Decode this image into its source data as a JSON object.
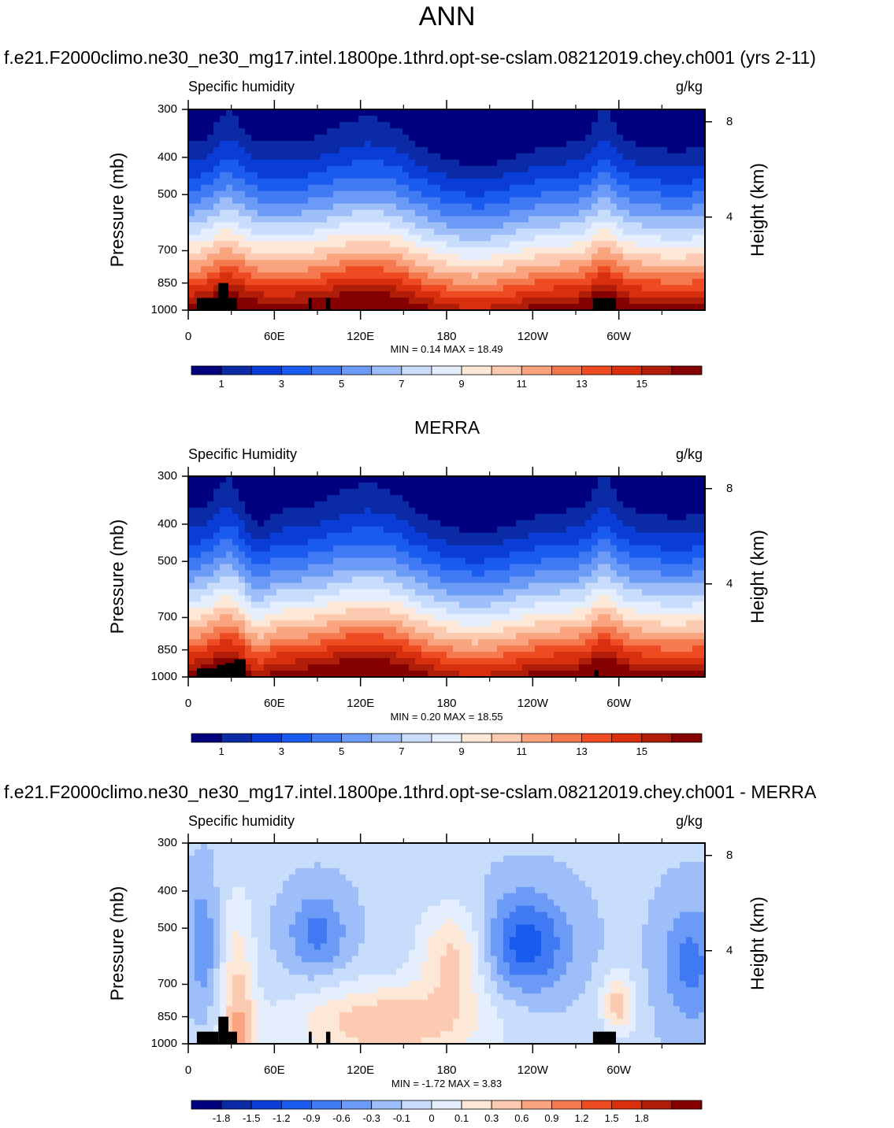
{
  "page_title": "ANN",
  "panels": [
    {
      "title": "f.e21.F2000climo.ne30_ne30_mg17.intel.1800pe.1thrd.opt-se-cslam.08212019.chey.ch001 (yrs 2-11)",
      "variable": "Specific humidity",
      "units": "g/kg",
      "minmax": "MIN =   0.14  MAX =  18.49",
      "kind": "abs"
    },
    {
      "title": "MERRA",
      "variable": "Specific Humidity",
      "units": "g/kg",
      "minmax": "MIN =   0.20  MAX =  18.55",
      "kind": "obs"
    },
    {
      "title": "f.e21.F2000climo.ne30_ne30_mg17.intel.1800pe.1thrd.opt-se-cslam.08212019.chey.ch001 - MERRA",
      "variable": "Specific humidity",
      "units": "g/kg",
      "minmax": "MIN =  -1.72  MAX =   3.83",
      "kind": "diff"
    }
  ],
  "axes": {
    "ylabel": "Pressure (mb)",
    "y2label": "Height (km)",
    "y_ticks": [
      "300",
      "400",
      "500",
      "700",
      "850",
      "1000"
    ],
    "y_tick_values": [
      300,
      400,
      500,
      700,
      850,
      1000
    ],
    "x_ticks": [
      "0",
      "60E",
      "120E",
      "180",
      "120W",
      "60W"
    ],
    "x_tick_values": [
      0,
      60,
      120,
      180,
      240,
      300
    ],
    "height_ticks": [
      "8",
      "4"
    ],
    "height_tick_values": [
      8,
      4
    ]
  },
  "colorbars": {
    "abs": {
      "labels": [
        "1",
        "3",
        "5",
        "7",
        "9",
        "11",
        "13",
        "15"
      ],
      "colors": [
        "#00007e",
        "#0a2aa6",
        "#0a3cd7",
        "#1a5bef",
        "#3f7af4",
        "#6b9bf6",
        "#9dbef8",
        "#c8dcfb",
        "#e4eefd",
        "#fde8d7",
        "#fbcab0",
        "#f9a47f",
        "#f5794f",
        "#ef4b22",
        "#d8300f",
        "#b01d08",
        "#850000"
      ]
    },
    "diff": {
      "labels": [
        "-1.8",
        "-1.5",
        "-1.2",
        "-0.9",
        "-0.6",
        "-0.3",
        "-0.1",
        "0",
        "0.1",
        "0.3",
        "0.6",
        "0.9",
        "1.2",
        "1.5",
        "1.8"
      ],
      "colors": [
        "#00007e",
        "#0a2aa6",
        "#0a3cd7",
        "#1a5bef",
        "#3f7af4",
        "#6b9bf6",
        "#9dbef8",
        "#c8dcfb",
        "#e4eefd",
        "#fde8d7",
        "#fbcab0",
        "#f9a47f",
        "#f5794f",
        "#ef4b22",
        "#d8300f",
        "#b01d08",
        "#850000"
      ]
    }
  },
  "chart_data": [
    {
      "type": "heatmap",
      "title": "f.e21.F2000climo.ne30_ne30_mg17.intel.1800pe.1thrd.opt-se-cslam.08212019.chey.ch001 (yrs 2-11)",
      "subtitle_left": "Specific humidity",
      "subtitle_right": "g/kg",
      "xlabel": "",
      "ylabel": "Pressure (mb)",
      "y2label": "Height (km)",
      "xlim": [
        0,
        360
      ],
      "ylim": [
        1000,
        300
      ],
      "levels": [
        1,
        2,
        3,
        4,
        5,
        6,
        7,
        8,
        9,
        10,
        11,
        12,
        13,
        14,
        15,
        16
      ],
      "min": 0.14,
      "max": 18.49
    },
    {
      "type": "heatmap",
      "title": "MERRA",
      "subtitle_left": "Specific Humidity",
      "subtitle_right": "g/kg",
      "xlabel": "",
      "ylabel": "Pressure (mb)",
      "y2label": "Height (km)",
      "xlim": [
        0,
        360
      ],
      "ylim": [
        1000,
        300
      ],
      "levels": [
        1,
        2,
        3,
        4,
        5,
        6,
        7,
        8,
        9,
        10,
        11,
        12,
        13,
        14,
        15,
        16
      ],
      "min": 0.2,
      "max": 18.55
    },
    {
      "type": "heatmap",
      "title": "f.e21.F2000climo.ne30_ne30_mg17.intel.1800pe.1thrd.opt-se-cslam.08212019.chey.ch001 - MERRA",
      "subtitle_left": "Specific humidity",
      "subtitle_right": "g/kg",
      "xlabel": "",
      "ylabel": "Pressure (mb)",
      "y2label": "Height (km)",
      "xlim": [
        0,
        360
      ],
      "ylim": [
        1000,
        300
      ],
      "levels": [
        -1.8,
        -1.5,
        -1.2,
        -0.9,
        -0.6,
        -0.3,
        -0.1,
        0,
        0.1,
        0.3,
        0.6,
        0.9,
        1.2,
        1.5,
        1.8
      ],
      "min": -1.72,
      "max": 3.83
    }
  ]
}
